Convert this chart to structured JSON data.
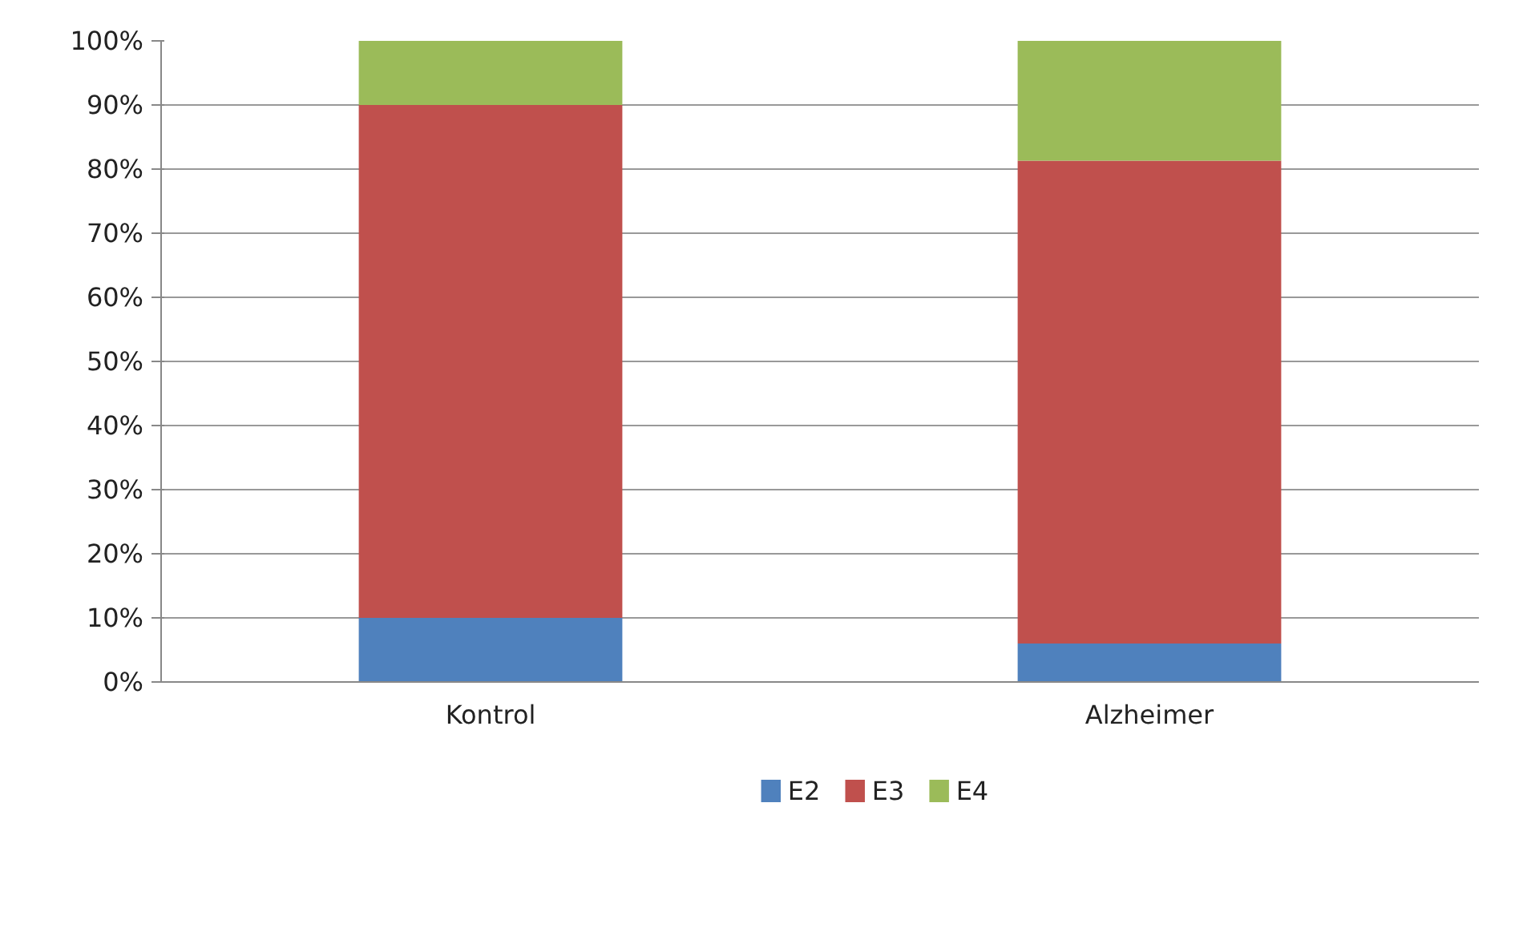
{
  "chart_data": {
    "type": "bar",
    "stacked": true,
    "categories": [
      "Kontrol",
      "Alzheimer"
    ],
    "series": [
      {
        "name": "E2",
        "color": "#4f81bd",
        "values": [
          10,
          6
        ]
      },
      {
        "name": "E3",
        "color": "#c0504d",
        "values": [
          80,
          75.3
        ]
      },
      {
        "name": "E4",
        "color": "#9bbb59",
        "values": [
          10,
          18.7
        ]
      }
    ],
    "ylim": [
      0,
      100
    ],
    "yticks": [
      {
        "value": 0,
        "label": "0%"
      },
      {
        "value": 10,
        "label": "10%"
      },
      {
        "value": 20,
        "label": "20%"
      },
      {
        "value": 30,
        "label": "30%"
      },
      {
        "value": 40,
        "label": "40%"
      },
      {
        "value": 50,
        "label": "50%"
      },
      {
        "value": 60,
        "label": "60%"
      },
      {
        "value": 70,
        "label": "70%"
      },
      {
        "value": 80,
        "label": "80%"
      },
      {
        "value": 90,
        "label": "90%"
      },
      {
        "value": 100,
        "label": "100%"
      }
    ],
    "grid": "y",
    "legend": "bottom"
  }
}
